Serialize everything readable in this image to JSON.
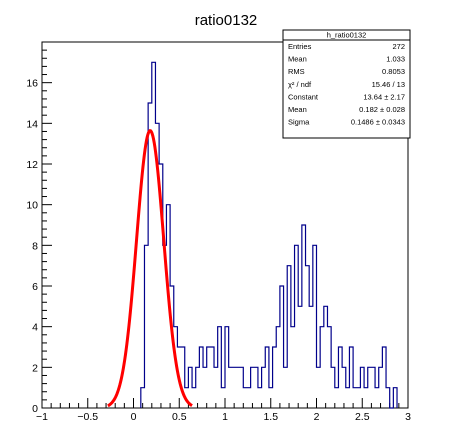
{
  "chart_data": {
    "type": "histogram",
    "title": "ratio0132",
    "xlim": [
      -1,
      3
    ],
    "ylim": [
      0,
      18
    ],
    "x_ticks": [
      {
        "value": -1,
        "label": "−1"
      },
      {
        "value": -0.5,
        "label": "−0.5"
      },
      {
        "value": 0,
        "label": "0"
      },
      {
        "value": 0.5,
        "label": "0.5"
      },
      {
        "value": 1,
        "label": "1"
      },
      {
        "value": 1.5,
        "label": "1.5"
      },
      {
        "value": 2,
        "label": "2"
      },
      {
        "value": 2.5,
        "label": "2.5"
      },
      {
        "value": 3,
        "label": "3"
      }
    ],
    "y_ticks": [
      {
        "value": 0,
        "label": "0"
      },
      {
        "value": 2,
        "label": "2"
      },
      {
        "value": 4,
        "label": "4"
      },
      {
        "value": 6,
        "label": "6"
      },
      {
        "value": 8,
        "label": "8"
      },
      {
        "value": 10,
        "label": "10"
      },
      {
        "value": 12,
        "label": "12"
      },
      {
        "value": 14,
        "label": "14"
      },
      {
        "value": 16,
        "label": "16"
      }
    ],
    "histogram": {
      "color": "#00008b",
      "bin_width": 0.04,
      "x_start": 0.08,
      "counts": [
        1,
        8,
        15,
        17,
        14,
        12,
        8,
        10,
        6,
        4,
        3,
        3,
        1,
        2,
        1,
        2,
        3,
        2,
        3,
        3,
        2,
        4,
        1,
        4,
        2,
        2,
        2,
        2,
        1,
        1,
        2,
        2,
        1,
        2,
        3,
        1,
        3,
        4,
        6,
        2,
        7,
        4,
        8,
        5,
        9,
        7,
        5,
        8,
        2,
        4,
        5,
        4,
        2,
        1,
        3,
        2,
        1,
        3,
        1,
        1,
        2,
        1,
        2,
        2,
        1,
        2,
        3,
        1,
        0,
        1
      ]
    },
    "fit": {
      "color": "#ff0000",
      "function": "gaus",
      "constant": 13.64,
      "mean": 0.182,
      "sigma": 0.1486,
      "x_range": [
        -0.28,
        0.64
      ]
    },
    "stats_box": {
      "header": "h_ratio0132",
      "rows": [
        {
          "label": "Entries",
          "value": "272"
        },
        {
          "label": "Mean",
          "value": "1.033"
        },
        {
          "label": "RMS",
          "value": "0.8053"
        },
        {
          "label": "χ² / ndf",
          "value": "15.46 / 13"
        },
        {
          "label": "Constant",
          "value": "13.64 ± 2.17"
        },
        {
          "label": "Mean",
          "value": "0.182 ± 0.028"
        },
        {
          "label": "Sigma",
          "value": "0.1486 ± 0.0343"
        }
      ]
    }
  }
}
